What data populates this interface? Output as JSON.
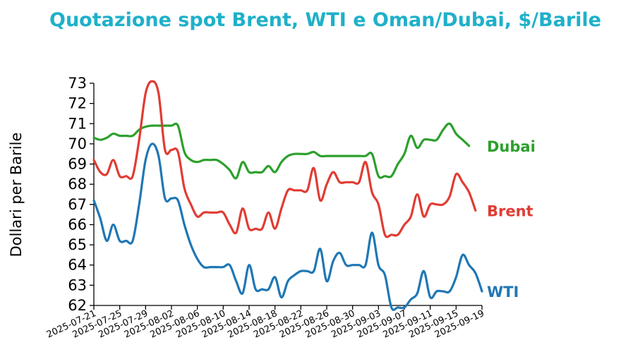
{
  "chart_data": {
    "type": "line",
    "title": "Quotazione spot Brent, WTI e Oman/Dubai, $/Barile",
    "xlabel": "",
    "ylabel": "Dollari per Barile",
    "ylim": [
      62,
      73
    ],
    "yticks": [
      62,
      63,
      64,
      65,
      66,
      67,
      68,
      69,
      70,
      71,
      72,
      73
    ],
    "xlim": [
      "2025-07-21",
      "2025-09-19"
    ],
    "xticks": [
      "2025-07-21",
      "2025-07-25",
      "2025-07-29",
      "2025-08-02",
      "2025-08-06",
      "2025-08-10",
      "2025-08-14",
      "2025-08-18",
      "2025-08-22",
      "2025-08-26",
      "2025-08-30",
      "2025-09-03",
      "2025-09-07",
      "2025-09-11",
      "2025-09-15",
      "2025-09-19"
    ],
    "grid": false,
    "legend": "end-of-line labels",
    "series": [
      {
        "name": "Dubai",
        "color": "#2ca02c",
        "points": [
          [
            "2025-07-21",
            70.3
          ],
          [
            "2025-07-22",
            70.2
          ],
          [
            "2025-07-23",
            70.3
          ],
          [
            "2025-07-24",
            70.5
          ],
          [
            "2025-07-25",
            70.4
          ],
          [
            "2025-07-26",
            70.4
          ],
          [
            "2025-07-27",
            70.4
          ],
          [
            "2025-07-28",
            70.7
          ],
          [
            "2025-07-29",
            70.85
          ],
          [
            "2025-07-30",
            70.9
          ],
          [
            "2025-07-31",
            70.9
          ],
          [
            "2025-08-01",
            70.9
          ],
          [
            "2025-08-02",
            70.9
          ],
          [
            "2025-08-03",
            70.9
          ],
          [
            "2025-08-04",
            69.6
          ],
          [
            "2025-08-05",
            69.2
          ],
          [
            "2025-08-06",
            69.1
          ],
          [
            "2025-08-07",
            69.2
          ],
          [
            "2025-08-08",
            69.2
          ],
          [
            "2025-08-09",
            69.2
          ],
          [
            "2025-08-10",
            69.0
          ],
          [
            "2025-08-11",
            68.7
          ],
          [
            "2025-08-12",
            68.3
          ],
          [
            "2025-08-13",
            69.1
          ],
          [
            "2025-08-14",
            68.6
          ],
          [
            "2025-08-15",
            68.6
          ],
          [
            "2025-08-16",
            68.6
          ],
          [
            "2025-08-17",
            68.9
          ],
          [
            "2025-08-18",
            68.6
          ],
          [
            "2025-08-19",
            69.1
          ],
          [
            "2025-08-20",
            69.4
          ],
          [
            "2025-08-21",
            69.5
          ],
          [
            "2025-08-22",
            69.5
          ],
          [
            "2025-08-23",
            69.5
          ],
          [
            "2025-08-24",
            69.6
          ],
          [
            "2025-08-25",
            69.4
          ],
          [
            "2025-08-26",
            69.4
          ],
          [
            "2025-08-27",
            69.4
          ],
          [
            "2025-08-28",
            69.4
          ],
          [
            "2025-08-29",
            69.4
          ],
          [
            "2025-08-30",
            69.4
          ],
          [
            "2025-08-31",
            69.4
          ],
          [
            "2025-09-01",
            69.4
          ],
          [
            "2025-09-02",
            69.5
          ],
          [
            "2025-09-03",
            68.4
          ],
          [
            "2025-09-04",
            68.4
          ],
          [
            "2025-09-05",
            68.4
          ],
          [
            "2025-09-06",
            69.0
          ],
          [
            "2025-09-07",
            69.5
          ],
          [
            "2025-09-08",
            70.4
          ],
          [
            "2025-09-09",
            69.8
          ],
          [
            "2025-09-10",
            70.2
          ],
          [
            "2025-09-11",
            70.2
          ],
          [
            "2025-09-12",
            70.2
          ],
          [
            "2025-09-13",
            70.7
          ],
          [
            "2025-09-14",
            71.0
          ],
          [
            "2025-09-15",
            70.5
          ],
          [
            "2025-09-16",
            70.2
          ],
          [
            "2025-09-17",
            69.9
          ]
        ]
      },
      {
        "name": "Brent",
        "color": "#e03c33",
        "points": [
          [
            "2025-07-21",
            69.2
          ],
          [
            "2025-07-22",
            68.6
          ],
          [
            "2025-07-23",
            68.5
          ],
          [
            "2025-07-24",
            69.2
          ],
          [
            "2025-07-25",
            68.4
          ],
          [
            "2025-07-26",
            68.4
          ],
          [
            "2025-07-27",
            68.4
          ],
          [
            "2025-07-28",
            70.2
          ],
          [
            "2025-07-29",
            72.5
          ],
          [
            "2025-07-30",
            73.1
          ],
          [
            "2025-07-31",
            72.5
          ],
          [
            "2025-08-01",
            69.7
          ],
          [
            "2025-08-02",
            69.7
          ],
          [
            "2025-08-03",
            69.6
          ],
          [
            "2025-08-04",
            67.8
          ],
          [
            "2025-08-05",
            67.0
          ],
          [
            "2025-08-06",
            66.4
          ],
          [
            "2025-08-07",
            66.6
          ],
          [
            "2025-08-08",
            66.6
          ],
          [
            "2025-08-09",
            66.6
          ],
          [
            "2025-08-10",
            66.6
          ],
          [
            "2025-08-11",
            66.0
          ],
          [
            "2025-08-12",
            65.6
          ],
          [
            "2025-08-13",
            66.8
          ],
          [
            "2025-08-14",
            65.8
          ],
          [
            "2025-08-15",
            65.8
          ],
          [
            "2025-08-16",
            65.8
          ],
          [
            "2025-08-17",
            66.6
          ],
          [
            "2025-08-18",
            65.8
          ],
          [
            "2025-08-19",
            66.8
          ],
          [
            "2025-08-20",
            67.7
          ],
          [
            "2025-08-21",
            67.7
          ],
          [
            "2025-08-22",
            67.7
          ],
          [
            "2025-08-23",
            67.7
          ],
          [
            "2025-08-24",
            68.8
          ],
          [
            "2025-08-25",
            67.2
          ],
          [
            "2025-08-26",
            68.0
          ],
          [
            "2025-08-27",
            68.6
          ],
          [
            "2025-08-28",
            68.1
          ],
          [
            "2025-08-29",
            68.1
          ],
          [
            "2025-08-30",
            68.1
          ],
          [
            "2025-08-31",
            68.1
          ],
          [
            "2025-09-01",
            69.1
          ],
          [
            "2025-09-02",
            67.6
          ],
          [
            "2025-09-03",
            67.0
          ],
          [
            "2025-09-04",
            65.5
          ],
          [
            "2025-09-05",
            65.5
          ],
          [
            "2025-09-06",
            65.5
          ],
          [
            "2025-09-07",
            66.0
          ],
          [
            "2025-09-08",
            66.4
          ],
          [
            "2025-09-09",
            67.5
          ],
          [
            "2025-09-10",
            66.4
          ],
          [
            "2025-09-11",
            67.0
          ],
          [
            "2025-09-12",
            67.0
          ],
          [
            "2025-09-13",
            67.0
          ],
          [
            "2025-09-14",
            67.4
          ],
          [
            "2025-09-15",
            68.5
          ],
          [
            "2025-09-16",
            68.1
          ],
          [
            "2025-09-17",
            67.6
          ],
          [
            "2025-09-18",
            66.7
          ]
        ]
      },
      {
        "name": "WTI",
        "color": "#1f77b4",
        "points": [
          [
            "2025-07-21",
            67.2
          ],
          [
            "2025-07-22",
            66.3
          ],
          [
            "2025-07-23",
            65.2
          ],
          [
            "2025-07-24",
            66.0
          ],
          [
            "2025-07-25",
            65.2
          ],
          [
            "2025-07-26",
            65.2
          ],
          [
            "2025-07-27",
            65.2
          ],
          [
            "2025-07-28",
            67.0
          ],
          [
            "2025-07-29",
            69.2
          ],
          [
            "2025-07-30",
            70.0
          ],
          [
            "2025-07-31",
            69.4
          ],
          [
            "2025-08-01",
            67.3
          ],
          [
            "2025-08-02",
            67.3
          ],
          [
            "2025-08-03",
            67.2
          ],
          [
            "2025-08-04",
            66.0
          ],
          [
            "2025-08-05",
            65.0
          ],
          [
            "2025-08-06",
            64.3
          ],
          [
            "2025-08-07",
            63.9
          ],
          [
            "2025-08-08",
            63.9
          ],
          [
            "2025-08-09",
            63.9
          ],
          [
            "2025-08-10",
            63.9
          ],
          [
            "2025-08-11",
            64.0
          ],
          [
            "2025-08-12",
            63.2
          ],
          [
            "2025-08-13",
            62.6
          ],
          [
            "2025-08-14",
            64.0
          ],
          [
            "2025-08-15",
            62.8
          ],
          [
            "2025-08-16",
            62.8
          ],
          [
            "2025-08-17",
            62.8
          ],
          [
            "2025-08-18",
            63.4
          ],
          [
            "2025-08-19",
            62.4
          ],
          [
            "2025-08-20",
            63.2
          ],
          [
            "2025-08-21",
            63.5
          ],
          [
            "2025-08-22",
            63.7
          ],
          [
            "2025-08-23",
            63.7
          ],
          [
            "2025-08-24",
            63.7
          ],
          [
            "2025-08-25",
            64.8
          ],
          [
            "2025-08-26",
            63.2
          ],
          [
            "2025-08-27",
            64.2
          ],
          [
            "2025-08-28",
            64.6
          ],
          [
            "2025-08-29",
            64.0
          ],
          [
            "2025-08-30",
            64.0
          ],
          [
            "2025-08-31",
            64.0
          ],
          [
            "2025-09-01",
            64.0
          ],
          [
            "2025-09-02",
            65.6
          ],
          [
            "2025-09-03",
            64.0
          ],
          [
            "2025-09-04",
            63.5
          ],
          [
            "2025-09-05",
            61.9
          ],
          [
            "2025-09-06",
            61.9
          ],
          [
            "2025-09-07",
            61.9
          ],
          [
            "2025-09-08",
            62.3
          ],
          [
            "2025-09-09",
            62.6
          ],
          [
            "2025-09-10",
            63.7
          ],
          [
            "2025-09-11",
            62.4
          ],
          [
            "2025-09-12",
            62.7
          ],
          [
            "2025-09-13",
            62.7
          ],
          [
            "2025-09-14",
            62.7
          ],
          [
            "2025-09-15",
            63.4
          ],
          [
            "2025-09-16",
            64.5
          ],
          [
            "2025-09-17",
            64.0
          ],
          [
            "2025-09-18",
            63.6
          ],
          [
            "2025-09-19",
            62.7
          ]
        ]
      }
    ]
  }
}
